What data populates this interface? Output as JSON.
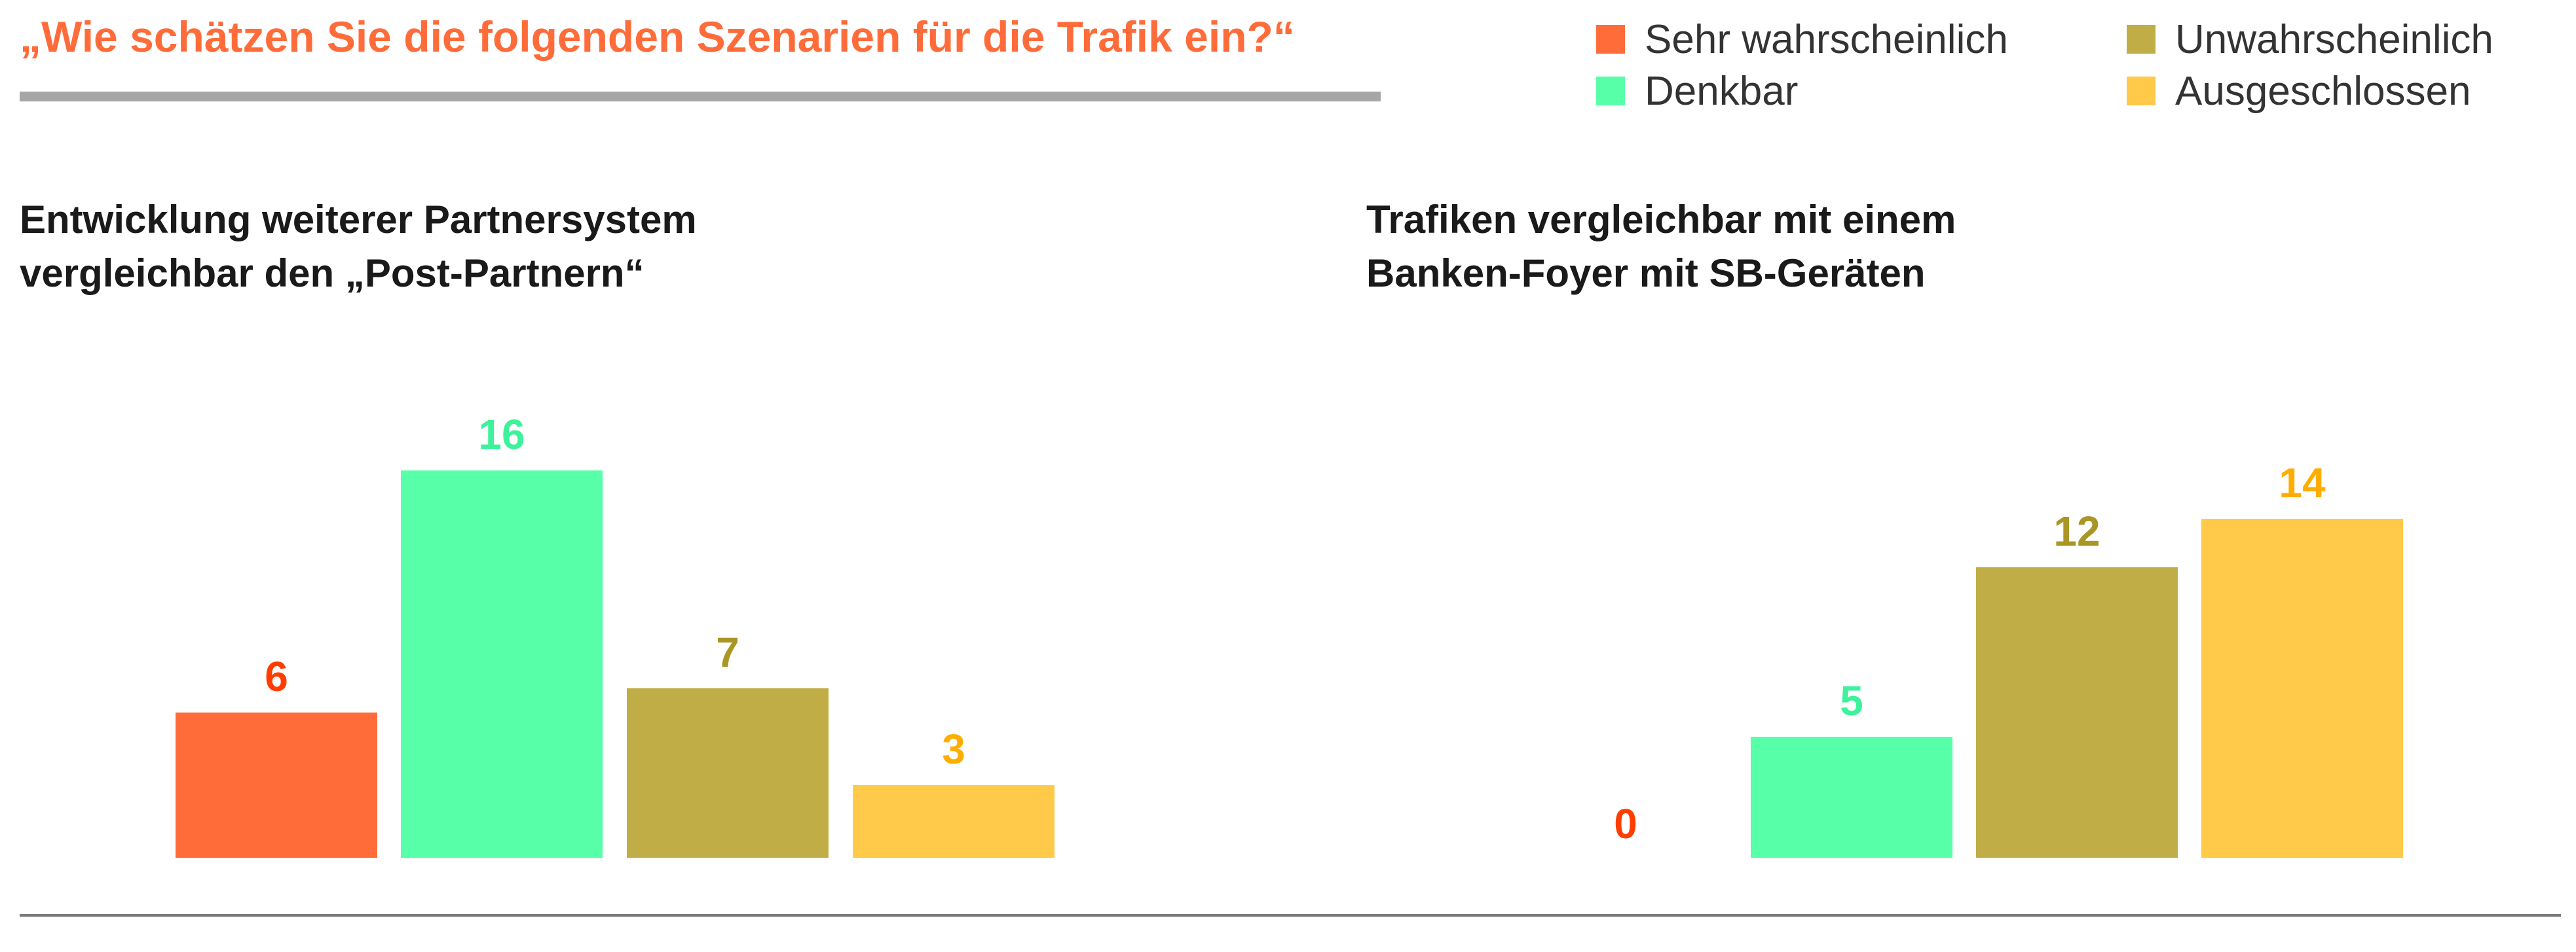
{
  "title": "„Wie schätzen Sie die folgenden Szenarien für die Trafik ein?“",
  "legend": [
    {
      "label": "Sehr wahrscheinlich",
      "color": "#ff6c3a"
    },
    {
      "label": "Denkbar",
      "color": "#58ffa9"
    },
    {
      "label": "Unwahrscheinlich",
      "color": "#c1ad46"
    },
    {
      "label": "Ausgeschlossen",
      "color": "#ffc94a"
    }
  ],
  "label_colors": [
    "#ff3d00",
    "#3df29a",
    "#a99625",
    "#ffae00"
  ],
  "chart_data": [
    {
      "type": "bar",
      "subtitle_lines": [
        "Entwicklung weiterer Partnersystem",
        "vergleichbar den „Post-Partnern“"
      ],
      "categories": [
        "Sehr wahrscheinlich",
        "Denkbar",
        "Unwahrscheinlich",
        "Ausgeschlossen"
      ],
      "values": [
        6,
        16,
        7,
        3
      ],
      "value_labels": [
        "6",
        "16",
        "7",
        "3"
      ],
      "ylim": [
        0,
        16
      ],
      "grid": false,
      "legend": "top-right"
    },
    {
      "type": "bar",
      "subtitle_lines": [
        "Trafiken vergleichbar mit einem",
        "Banken-Foyer mit SB-Geräten"
      ],
      "categories": [
        "Sehr wahrscheinlich",
        "Denkbar",
        "Unwahrscheinlich",
        "Ausgeschlossen"
      ],
      "values": [
        0,
        5,
        12,
        14
      ],
      "value_labels": [
        "0",
        "5",
        "12",
        "14"
      ],
      "ylim": [
        0,
        16
      ],
      "grid": false,
      "legend": "top-right"
    }
  ]
}
